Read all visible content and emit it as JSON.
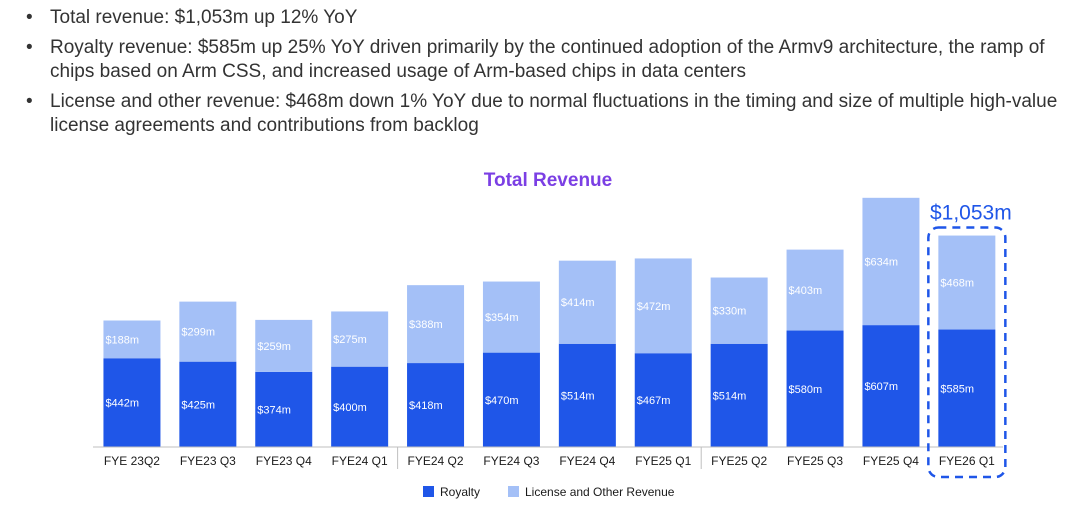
{
  "bullets": [
    "Total revenue: $1,053m up 12% YoY",
    "Royalty revenue: $585m up 25% YoY driven primarily by the continued adoption of the Armv9 architecture, the ramp of chips based on Arm CSS, and increased usage of Arm-based chips in data centers",
    "License and other revenue: $468m down 1% YoY due to normal fluctuations in the timing and size of multiple high-value license agreements and contributions from backlog"
  ],
  "colors": {
    "royalty": "#1f56e8",
    "license": "#a4c0f7",
    "title": "#7b3fe4",
    "highlight": "#1f56e8"
  },
  "chart_data": {
    "type": "bar",
    "stacked": true,
    "title": "Total Revenue",
    "categories": [
      "FYE 23Q2",
      "FYE23 Q3",
      "FYE23 Q4",
      "FYE24 Q1",
      "FYE24 Q2",
      "FYE24 Q3",
      "FYE24 Q4",
      "FYE25 Q1",
      "FYE25 Q2",
      "FYE25 Q3",
      "FYE25 Q4",
      "FYE26 Q1"
    ],
    "series": [
      {
        "name": "Royalty",
        "values": [
          442,
          425,
          374,
          400,
          418,
          470,
          514,
          467,
          514,
          580,
          607,
          585
        ],
        "labels": [
          "$442m",
          "$425m",
          "$374m",
          "$400m",
          "$418m",
          "$470m",
          "$514m",
          "$467m",
          "$514m",
          "$580m",
          "$607m",
          "$585m"
        ]
      },
      {
        "name": "License and Other Revenue",
        "values": [
          188,
          299,
          259,
          275,
          388,
          354,
          414,
          472,
          330,
          403,
          634,
          468
        ],
        "labels": [
          "$188m",
          "$299m",
          "$259m",
          "$275m",
          "$388m",
          "$354m",
          "$414m",
          "$472m",
          "$330m",
          "$403m",
          "$634m",
          "$468m"
        ]
      }
    ],
    "highlight": {
      "category": "FYE26 Q1",
      "label": "$1,053m"
    },
    "legend": "bottom",
    "grid": false
  }
}
